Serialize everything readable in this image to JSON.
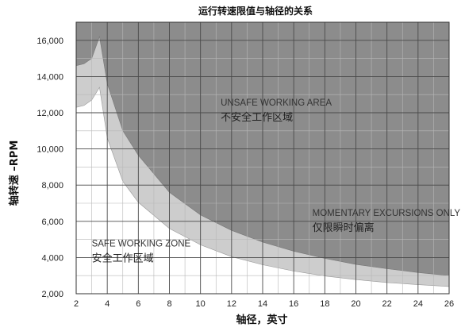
{
  "chart_data": {
    "type": "area",
    "title": "运行转速限值与轴径的关系",
    "xlabel": "轴径，英寸",
    "ylabel": "轴转速 –RPM",
    "xlim": [
      2,
      26
    ],
    "ylim": [
      2000,
      17000
    ],
    "x_ticks": [
      2,
      4,
      6,
      8,
      10,
      12,
      14,
      16,
      18,
      20,
      22,
      24,
      26
    ],
    "y_ticks": [
      2000,
      4000,
      6000,
      8000,
      10000,
      12000,
      14000,
      16000
    ],
    "x_tick_labels": [
      "2",
      "4",
      "6",
      "8",
      "10",
      "12",
      "14",
      "16",
      "18",
      "20",
      "22",
      "24",
      "26"
    ],
    "y_tick_labels": [
      "2,000",
      "4,000",
      "6,000",
      "8,000",
      "10,000",
      "12,000",
      "14,000",
      "16,000"
    ],
    "grid": true,
    "series": [
      {
        "role": "momentary-excursion-limit",
        "x": [
          2.0,
          2.5,
          3.0,
          3.5,
          4.0,
          5.0,
          6.0,
          8.0,
          10.0,
          12.0,
          14.0,
          16.0,
          18.0,
          20.0,
          22.0,
          24.0,
          26.0
        ],
        "y": [
          14600,
          14700,
          15000,
          16200,
          13600,
          11000,
          9650,
          7600,
          6350,
          5500,
          4850,
          4350,
          3950,
          3620,
          3380,
          3170,
          3000
        ]
      },
      {
        "role": "safe-working-limit",
        "x": [
          2.0,
          2.5,
          3.0,
          3.5,
          4.0,
          5.0,
          6.0,
          8.0,
          10.0,
          12.0,
          14.0,
          16.0,
          18.0,
          20.0,
          22.0,
          24.0,
          26.0
        ],
        "y": [
          12300,
          12400,
          12700,
          13400,
          10600,
          8200,
          7050,
          5600,
          4700,
          4050,
          3600,
          3250,
          2980,
          2780,
          2620,
          2500,
          2400
        ]
      }
    ],
    "zones": [
      {
        "id": "unsafe",
        "label_en": "UNSAFE WORKING AREA",
        "label_cn": "不安全工作区域",
        "x": 11.3,
        "y": 12400,
        "color": "#8c8c8c"
      },
      {
        "id": "momentary",
        "label_en": "MOMENTARY EXCURSIONS ONLY",
        "label_cn": "仅限瞬时偏离",
        "x": 17.2,
        "y": 6300,
        "color": "#cdcdcd"
      },
      {
        "id": "safe",
        "label_en": "SAFE WORKING ZONE",
        "label_cn": "安全工作区域",
        "x": 3.0,
        "y": 4600,
        "color": "#ffffff"
      }
    ],
    "colors": {
      "unsafe": "#8c8c8c",
      "momentary": "#cdcdcd",
      "safe": "#ffffff",
      "grid_dark": "#4a4a4a",
      "grid_light": "#b8b8b8"
    }
  }
}
